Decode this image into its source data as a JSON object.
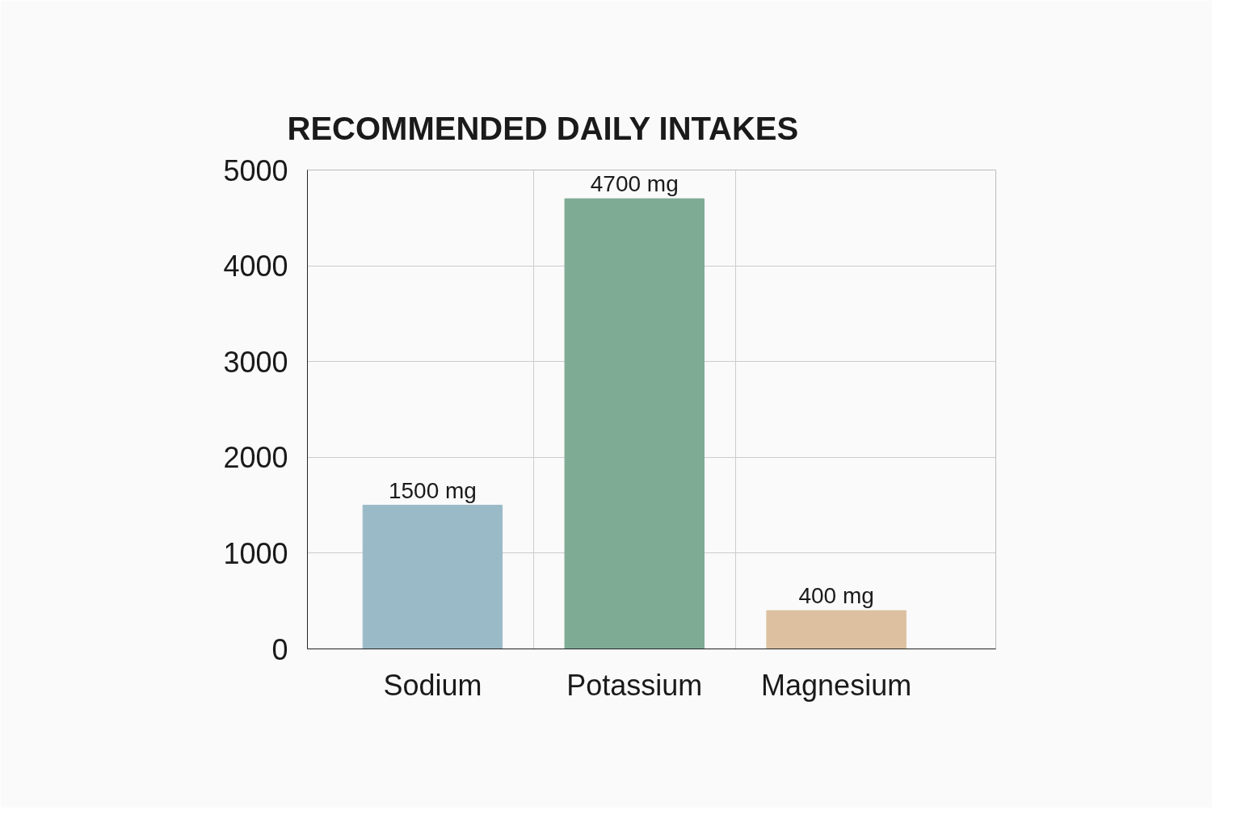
{
  "chart_data": {
    "type": "bar",
    "title": "RECOMMENDED DAILY INTAKES",
    "categories": [
      "Sodium",
      "Potassium",
      "Magnesium"
    ],
    "values": [
      1500,
      4700,
      400
    ],
    "colors": [
      "#9bbac8",
      "#7eab93",
      "#dcc0a0"
    ],
    "value_labels": [
      "1500 mg",
      "4700 mg",
      "400 mg"
    ],
    "ylim": [
      0,
      5000
    ],
    "yticks": [
      0,
      1000,
      2000,
      3000,
      4000,
      5000
    ],
    "grid": true
  }
}
